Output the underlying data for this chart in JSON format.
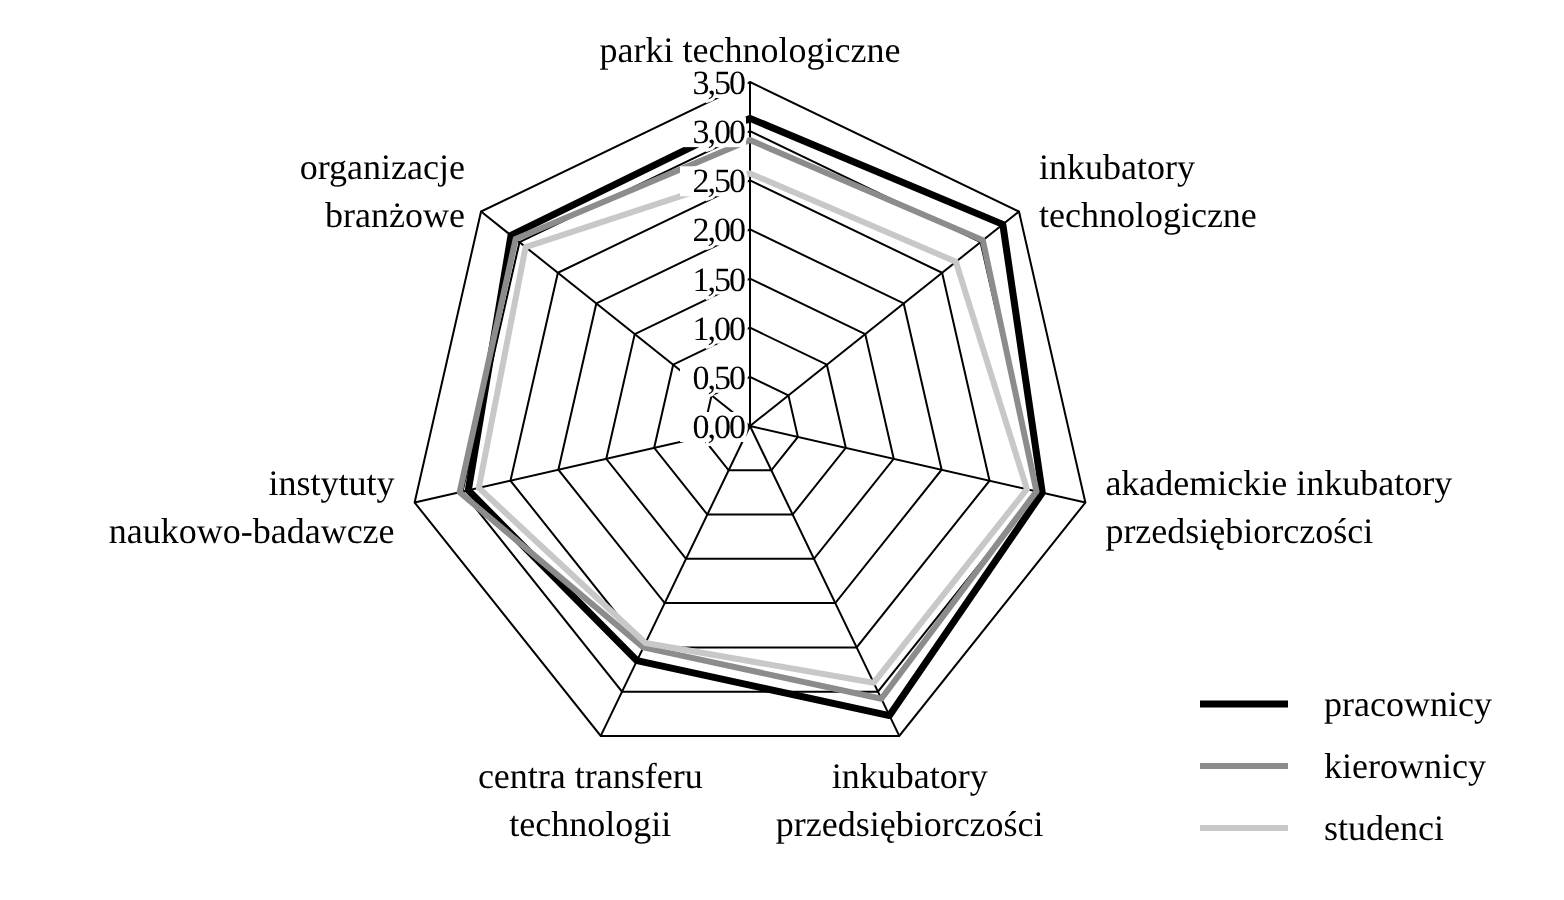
{
  "chart_data": {
    "type": "radar",
    "categories": [
      "parki technologiczne",
      "inkubatory\ntechnologiczne",
      "akademickie inkubatory\nprzedsiębiorczości",
      "inkubatory\nprzedsiębiorczości",
      "centra transferu\ntechnologii",
      "instytuty\nnaukowo-badawcze",
      "organizacje\nbranżowe"
    ],
    "series": [
      {
        "name": "pracownicy",
        "color": "#000000",
        "values": [
          3.13,
          3.29,
          3.05,
          3.27,
          2.65,
          2.94,
          3.11
        ]
      },
      {
        "name": "kierownicy",
        "color": "#8c8c8c",
        "values": [
          2.91,
          3.03,
          2.99,
          3.08,
          2.5,
          3.03,
          3.05
        ]
      },
      {
        "name": "studenci",
        "color": "#c8c8c8",
        "values": [
          2.57,
          2.68,
          2.89,
          2.9,
          2.45,
          2.83,
          2.92
        ]
      }
    ],
    "ylim": [
      0,
      3.5
    ],
    "yticks": [
      {
        "value": 0,
        "label": "0,00"
      },
      {
        "value": 0.5,
        "label": "0,50"
      },
      {
        "value": 1,
        "label": "1,00"
      },
      {
        "value": 1.5,
        "label": "1,50"
      },
      {
        "value": 2,
        "label": "2,00"
      },
      {
        "value": 2.5,
        "label": "2,50"
      },
      {
        "value": 3,
        "label": "3,00"
      },
      {
        "value": 3.5,
        "label": "3,50"
      }
    ],
    "grid": true,
    "legend": "bottom right",
    "line_style": "solid",
    "marker": "none"
  }
}
